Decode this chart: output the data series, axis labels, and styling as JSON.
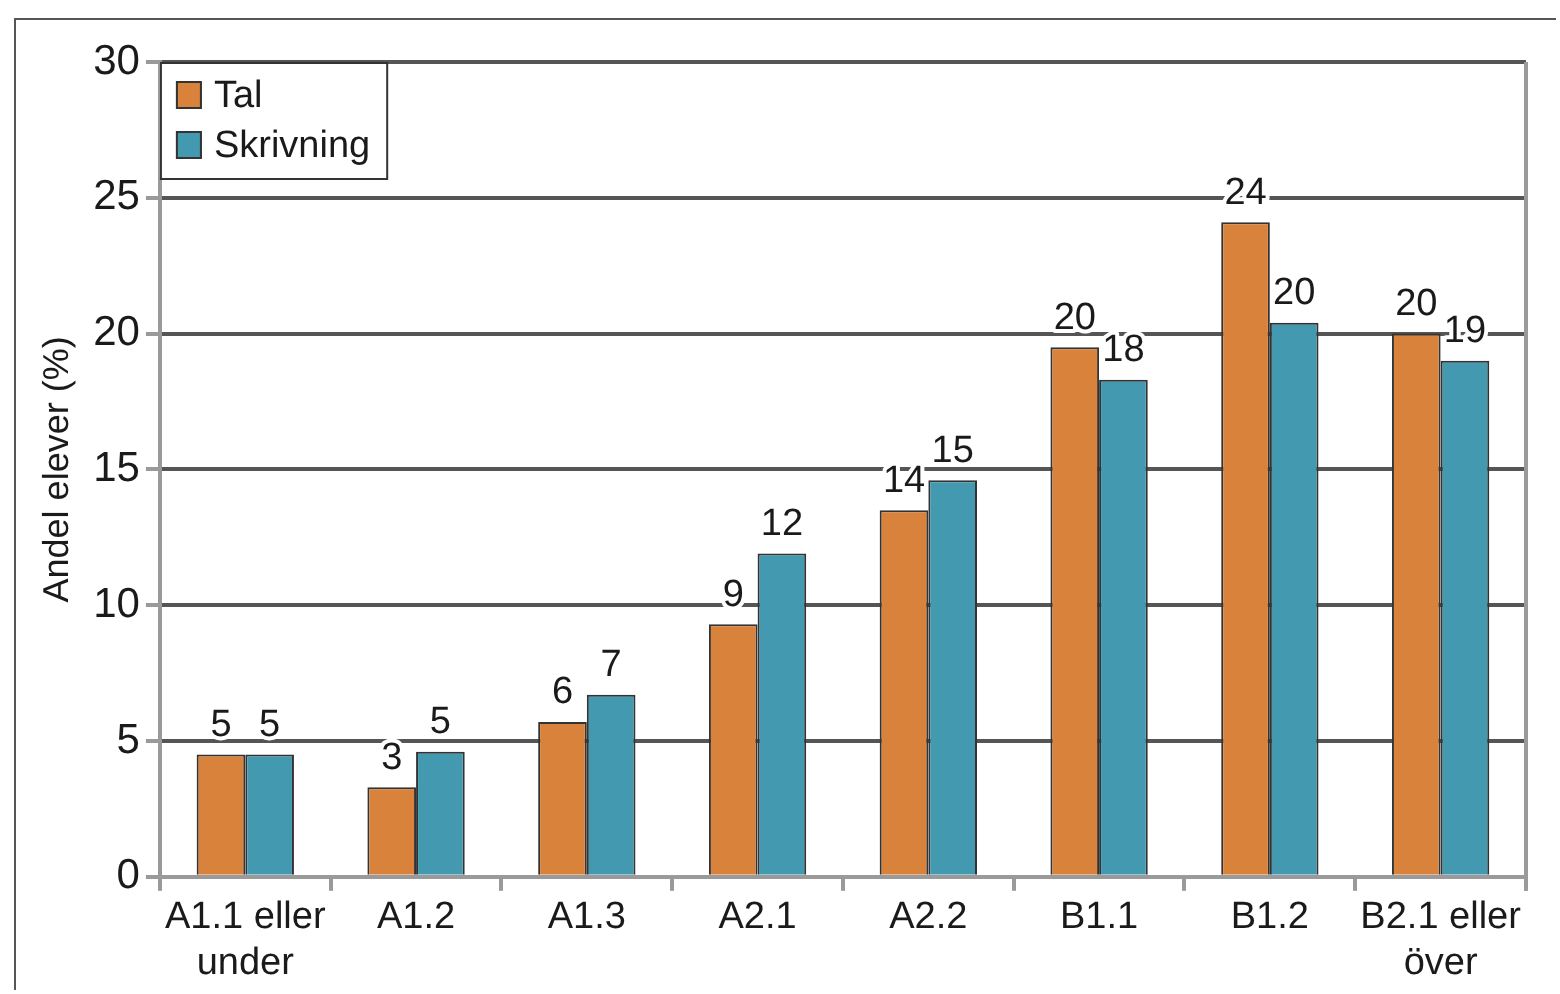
{
  "chart_data": {
    "type": "bar",
    "ylabel": "Andel elever (%)",
    "categories": [
      "A1.1 eller under",
      "A1.2",
      "A1.3",
      "A2.1",
      "A2.2",
      "B1.1",
      "B1.2",
      "B2.1 eller över"
    ],
    "series": [
      {
        "name": "Tal",
        "color": "#d9823c",
        "values": [
          4.5,
          3.3,
          5.7,
          9.3,
          13.5,
          19.5,
          24.1,
          20.0
        ],
        "value_labels": [
          "5",
          "3",
          "6",
          "9",
          "14",
          "20",
          "24",
          "20"
        ]
      },
      {
        "name": "Skrivning",
        "color": "#4299b0",
        "values": [
          4.5,
          4.6,
          6.7,
          11.9,
          14.6,
          18.3,
          20.4,
          19.0
        ],
        "value_labels": [
          "5",
          "5",
          "7",
          "12",
          "15",
          "18",
          "20",
          "19"
        ]
      }
    ],
    "ylim": [
      0,
      30
    ],
    "yticks": [
      0,
      5,
      10,
      15,
      20,
      25,
      30
    ],
    "grid": "y",
    "legend": "top left"
  }
}
